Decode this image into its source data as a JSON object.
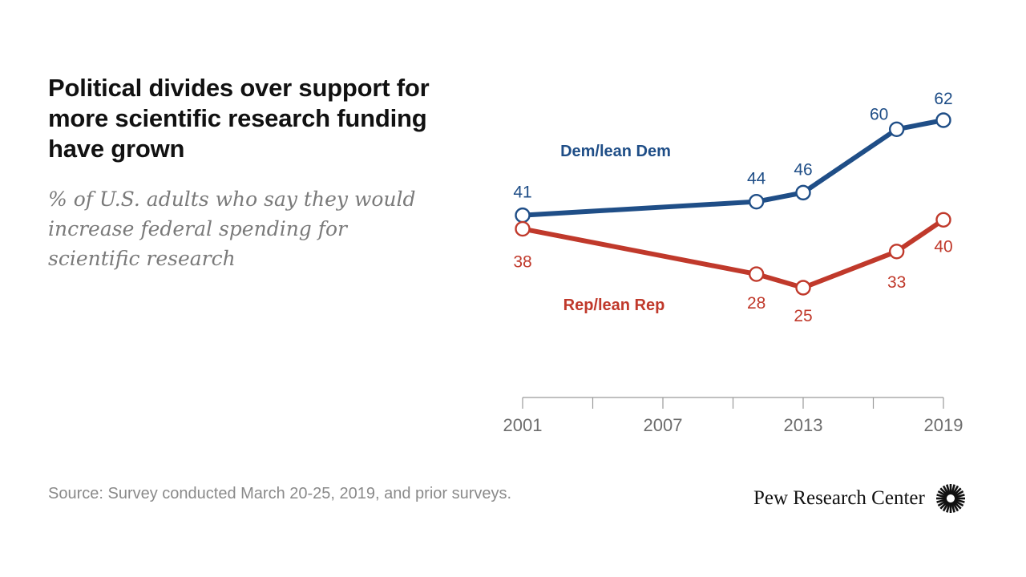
{
  "header": {
    "title": "Political divides over support for more scientific research funding have grown",
    "subtitle": "% of U.S. adults who say they would increase federal spending for scientific research"
  },
  "footer": {
    "source": "Source: Survey conducted March 20-25, 2019, and prior surveys.",
    "brand": "Pew Research Center",
    "brand_icon": "sunburst-logo-icon"
  },
  "chart_data": {
    "type": "line",
    "x_ticks": [
      2001,
      2007,
      2013,
      2019
    ],
    "xlim": [
      2001,
      2019
    ],
    "ylim": [
      0,
      70
    ],
    "grid": false,
    "legend": "direct labels",
    "series": [
      {
        "name": "Dem/lean Dem",
        "color": "#1f4e87",
        "x": [
          2001,
          2011,
          2013,
          2017,
          2019
        ],
        "values": [
          41,
          44,
          46,
          60,
          62
        ]
      },
      {
        "name": "Rep/lean Rep",
        "color": "#c0392b",
        "x": [
          2001,
          2011,
          2013,
          2017,
          2019
        ],
        "values": [
          38,
          28,
          25,
          33,
          40
        ]
      }
    ]
  }
}
